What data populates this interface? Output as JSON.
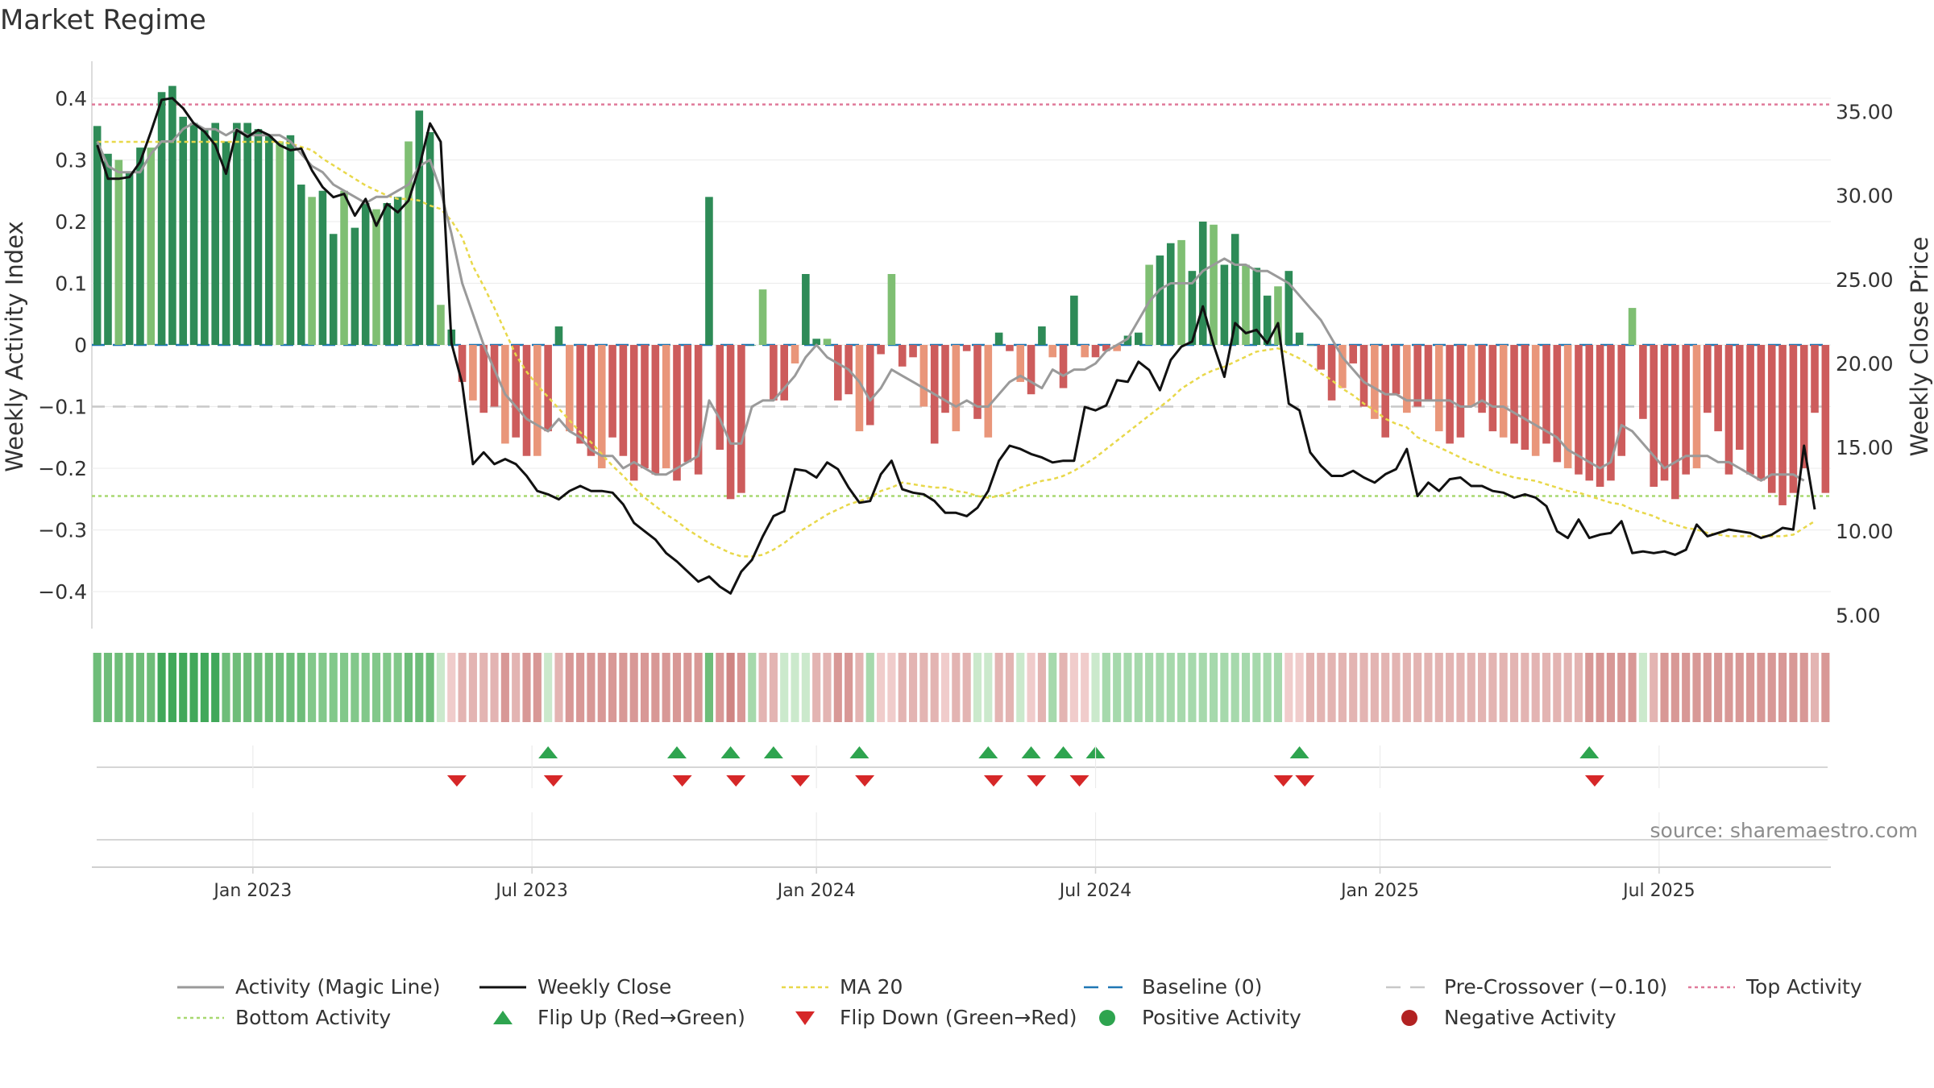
{
  "chart_data": {
    "type": "bar",
    "title": "Market Regime",
    "ylabel_left": "Weekly Activity Index",
    "ylabel_right": "Weekly Close Price",
    "source": "source: sharemaestro.com",
    "ylim_left": [
      -0.46,
      0.46
    ],
    "ylim_right": [
      4.2,
      38.0
    ],
    "left_ticks": [
      "0.4",
      "0.3",
      "0.2",
      "0.1",
      "0",
      "−0.1",
      "−0.2",
      "−0.3",
      "−0.4"
    ],
    "left_tick_values": [
      0.4,
      0.3,
      0.2,
      0.1,
      0,
      -0.1,
      -0.2,
      -0.3,
      -0.4
    ],
    "right_ticks": [
      "35.00",
      "30.00",
      "25.00",
      "20.00",
      "15.00",
      "10.00",
      "5.00"
    ],
    "right_tick_values": [
      35,
      30,
      25,
      20,
      15,
      10,
      5
    ],
    "x_ticks": [
      "Jan 2023",
      "Jul 2023",
      "Jan 2024",
      "Jul 2024",
      "Jan 2025",
      "Jul 2025"
    ],
    "x_tick_weeks": [
      15,
      41,
      67.5,
      93.5,
      120,
      146
    ],
    "reference_lines": {
      "top_activity": 0.39,
      "bottom_activity": -0.245,
      "pre_crossover": -0.1,
      "baseline": 0
    },
    "colors": {
      "pos_strong": "#2e8b57",
      "pos_light": "#7fbf73",
      "neg_strong": "#cd5c5c",
      "neg_light": "#e9967a",
      "magic_line": "#9a9a9a",
      "close": "#111111",
      "ma20": "#e8d84a",
      "baseline": "#1f77b4",
      "pre_crossover": "#c8c8c8",
      "top_activity": "#e07a9a",
      "bottom_activity": "#a8d870",
      "flip_up": "#2ea44f",
      "flip_down": "#d62728",
      "negative_dot": "#b22222"
    },
    "series": [
      {
        "name": "Weekly Activity Index",
        "values": [
          0.355,
          0.31,
          0.3,
          0.28,
          0.32,
          0.32,
          0.41,
          0.42,
          0.37,
          0.36,
          0.35,
          0.36,
          0.33,
          0.36,
          0.36,
          0.35,
          0.34,
          0.33,
          0.34,
          0.26,
          0.24,
          0.25,
          0.18,
          0.25,
          0.19,
          0.23,
          0.22,
          0.23,
          0.24,
          0.33,
          0.38,
          0.345,
          0.065,
          0.025,
          -0.06,
          -0.09,
          -0.11,
          -0.1,
          -0.16,
          -0.15,
          -0.18,
          -0.18,
          -0.14,
          0.03,
          -0.14,
          -0.16,
          -0.18,
          -0.2,
          -0.15,
          -0.18,
          -0.22,
          -0.2,
          -0.21,
          -0.2,
          -0.22,
          -0.19,
          -0.21,
          0.24,
          -0.17,
          -0.25,
          -0.24,
          0.0,
          0.09,
          -0.09,
          -0.09,
          -0.03,
          0.115,
          0.01,
          0.01,
          -0.09,
          -0.08,
          -0.14,
          -0.13,
          -0.015,
          0.115,
          -0.035,
          -0.02,
          -0.1,
          -0.16,
          -0.11,
          -0.14,
          -0.01,
          -0.12,
          -0.15,
          0.02,
          -0.01,
          -0.06,
          -0.08,
          0.03,
          -0.02,
          -0.07,
          0.08,
          -0.02,
          -0.02,
          -0.01,
          -0.01,
          0.015,
          0.02,
          0.13,
          0.145,
          0.165,
          0.17,
          0.12,
          0.2,
          0.195,
          0.13,
          0.18,
          0.13,
          0.125,
          0.08,
          0.095,
          0.12,
          0.02,
          0.0,
          -0.04,
          -0.09,
          -0.07,
          -0.03,
          -0.1,
          -0.12,
          -0.15,
          -0.08,
          -0.11,
          -0.1,
          -0.09,
          -0.14,
          -0.16,
          -0.15,
          -0.1,
          -0.11,
          -0.14,
          -0.15,
          -0.16,
          -0.17,
          -0.18,
          -0.16,
          -0.19,
          -0.2,
          -0.21,
          -0.22,
          -0.23,
          -0.22,
          -0.18,
          0.06,
          -0.12,
          -0.23,
          -0.22,
          -0.25,
          -0.21,
          -0.2,
          -0.11,
          -0.14,
          -0.21,
          -0.17,
          -0.21,
          -0.22,
          -0.24,
          -0.26,
          -0.24,
          -0.2,
          -0.11,
          -0.24
        ]
      },
      {
        "name": "Activity (Magic Line)",
        "values": [
          0.33,
          0.29,
          0.28,
          0.28,
          0.28,
          0.31,
          0.33,
          0.33,
          0.35,
          0.36,
          0.35,
          0.35,
          0.34,
          0.35,
          0.34,
          0.34,
          0.34,
          0.34,
          0.33,
          0.31,
          0.29,
          0.28,
          0.26,
          0.25,
          0.24,
          0.23,
          0.24,
          0.24,
          0.25,
          0.26,
          0.29,
          0.3,
          0.25,
          0.18,
          0.1,
          0.05,
          0.0,
          -0.04,
          -0.08,
          -0.1,
          -0.12,
          -0.13,
          -0.14,
          -0.12,
          -0.14,
          -0.15,
          -0.17,
          -0.18,
          -0.18,
          -0.2,
          -0.19,
          -0.2,
          -0.21,
          -0.21,
          -0.2,
          -0.19,
          -0.18,
          -0.09,
          -0.12,
          -0.16,
          -0.16,
          -0.1,
          -0.09,
          -0.09,
          -0.07,
          -0.05,
          -0.02,
          0.0,
          -0.02,
          -0.03,
          -0.04,
          -0.06,
          -0.09,
          -0.07,
          -0.04,
          -0.05,
          -0.06,
          -0.07,
          -0.08,
          -0.09,
          -0.1,
          -0.09,
          -0.1,
          -0.1,
          -0.08,
          -0.06,
          -0.05,
          -0.06,
          -0.07,
          -0.04,
          -0.05,
          -0.04,
          -0.04,
          -0.03,
          -0.01,
          0.0,
          0.01,
          0.04,
          0.07,
          0.09,
          0.1,
          0.1,
          0.1,
          0.12,
          0.13,
          0.14,
          0.13,
          0.13,
          0.12,
          0.12,
          0.11,
          0.1,
          0.08,
          0.06,
          0.04,
          0.01,
          -0.02,
          -0.04,
          -0.06,
          -0.07,
          -0.08,
          -0.08,
          -0.09,
          -0.09,
          -0.09,
          -0.09,
          -0.09,
          -0.1,
          -0.1,
          -0.09,
          -0.1,
          -0.1,
          -0.11,
          -0.12,
          -0.13,
          -0.14,
          -0.15,
          -0.17,
          -0.18,
          -0.19,
          -0.2,
          -0.19,
          -0.13,
          -0.14,
          -0.16,
          -0.18,
          -0.2,
          -0.19,
          -0.18,
          -0.18,
          -0.18,
          -0.19,
          -0.19,
          -0.2,
          -0.21,
          -0.22,
          -0.21,
          -0.21,
          -0.21,
          -0.22
        ]
      },
      {
        "name": "Weekly Close",
        "values": [
          33.0,
          31.0,
          31.0,
          31.1,
          32.0,
          33.8,
          35.7,
          35.8,
          35.2,
          34.3,
          33.8,
          33.0,
          31.3,
          33.9,
          33.5,
          33.9,
          33.6,
          33.0,
          32.7,
          32.8,
          31.5,
          30.5,
          29.9,
          30.1,
          28.8,
          29.8,
          28.2,
          29.5,
          29.0,
          29.7,
          31.7,
          34.3,
          33.2,
          21.2,
          18.8,
          14.0,
          14.7,
          14.0,
          14.3,
          14.0,
          13.3,
          12.4,
          12.2,
          11.9,
          12.4,
          12.7,
          12.4,
          12.4,
          12.3,
          11.6,
          10.5,
          10.0,
          9.5,
          8.7,
          8.2,
          7.6,
          7.0,
          7.3,
          6.7,
          6.3,
          7.6,
          8.3,
          9.7,
          10.9,
          11.2,
          13.7,
          13.6,
          13.2,
          14.1,
          13.7,
          12.6,
          11.7,
          11.8,
          13.4,
          14.2,
          12.5,
          12.3,
          12.2,
          11.8,
          11.1,
          11.1,
          10.9,
          11.4,
          12.4,
          14.2,
          15.1,
          14.9,
          14.6,
          14.4,
          14.1,
          14.2,
          14.2,
          17.4,
          17.2,
          17.5,
          19.0,
          18.9,
          20.1,
          19.6,
          18.4,
          20.2,
          21.0,
          21.3,
          23.4,
          21.1,
          19.2,
          22.4,
          21.8,
          22.0,
          21.2,
          22.4,
          17.6,
          17.2,
          14.7,
          13.9,
          13.3,
          13.3,
          13.6,
          13.2,
          12.9,
          13.4,
          13.7,
          14.9,
          12.1,
          12.9,
          12.4,
          13.1,
          13.2,
          12.7,
          12.7,
          12.4,
          12.3,
          12.0,
          12.2,
          12.0,
          11.5,
          10.0,
          9.6,
          10.7,
          9.6,
          9.8,
          9.9,
          10.6,
          8.7,
          8.8,
          8.7,
          8.8,
          8.6,
          8.9,
          10.4,
          9.7,
          9.9,
          10.1,
          10.0,
          9.9,
          9.6,
          9.8,
          10.2,
          10.1,
          15.1,
          11.3
        ]
      },
      {
        "name": "MA 20",
        "values": [
          33.2,
          33.2,
          33.2,
          33.2,
          33.2,
          33.2,
          33.2,
          33.2,
          33.2,
          33.2,
          33.2,
          33.2,
          33.2,
          33.2,
          33.2,
          33.2,
          33.2,
          33.2,
          33.1,
          32.9,
          32.7,
          32.2,
          31.8,
          31.4,
          31.0,
          30.6,
          30.3,
          30.0,
          29.8,
          29.8,
          29.7,
          29.4,
          29.2,
          28.5,
          27.5,
          25.8,
          24.6,
          23.3,
          21.9,
          20.5,
          19.5,
          18.7,
          18.0,
          17.3,
          16.6,
          15.9,
          15.3,
          14.6,
          13.9,
          13.3,
          12.6,
          12.0,
          11.5,
          11.0,
          10.6,
          10.1,
          9.7,
          9.3,
          9.0,
          8.7,
          8.5,
          8.5,
          8.6,
          8.9,
          9.3,
          9.8,
          10.2,
          10.6,
          11.0,
          11.3,
          11.6,
          11.8,
          12.0,
          12.4,
          12.6,
          12.9,
          12.8,
          12.7,
          12.6,
          12.6,
          12.4,
          12.3,
          12.1,
          12.0,
          12.1,
          12.3,
          12.6,
          12.8,
          13.0,
          13.1,
          13.3,
          13.6,
          14.0,
          14.4,
          14.9,
          15.4,
          15.9,
          16.4,
          16.9,
          17.4,
          17.9,
          18.5,
          18.9,
          19.3,
          19.6,
          19.8,
          20.1,
          20.4,
          20.7,
          20.8,
          20.9,
          20.6,
          20.3,
          19.9,
          19.4,
          19.0,
          18.5,
          18.1,
          17.6,
          17.2,
          16.7,
          16.4,
          16.2,
          15.6,
          15.3,
          15.0,
          14.7,
          14.4,
          14.1,
          13.9,
          13.6,
          13.4,
          13.2,
          13.1,
          13.0,
          12.8,
          12.6,
          12.4,
          12.3,
          12.1,
          11.9,
          11.7,
          11.6,
          11.3,
          11.1,
          10.9,
          10.6,
          10.4,
          10.2,
          10.1,
          9.9,
          9.8,
          9.7,
          9.7,
          9.7,
          9.7,
          9.7,
          9.7,
          9.8,
          10.2,
          10.6
        ]
      }
    ],
    "regime_strip": [
      "p3",
      "p3",
      "p3",
      "p3",
      "p3",
      "p3",
      "p4",
      "p4",
      "p4",
      "p4",
      "p4",
      "p4",
      "p3",
      "p3",
      "p3",
      "p3",
      "p3",
      "p3",
      "p3",
      "p3",
      "p2",
      "p2",
      "p2",
      "p2",
      "p2",
      "p2",
      "p2",
      "p2",
      "p2",
      "p3",
      "p3",
      "p3",
      "p0",
      "n0",
      "n1",
      "n1",
      "n1",
      "n1",
      "n2",
      "n1",
      "n2",
      "n2",
      "p0",
      "n1",
      "n2",
      "n2",
      "n2",
      "n2",
      "n2",
      "n2",
      "n2",
      "n2",
      "n2",
      "n2",
      "n2",
      "n2",
      "n2",
      "p3",
      "n2",
      "n3",
      "n2",
      "p1",
      "n1",
      "n1",
      "p0",
      "p0",
      "p0",
      "n1",
      "n1",
      "n2",
      "n2",
      "n1",
      "p1",
      "n0",
      "n0",
      "n1",
      "n1",
      "n1",
      "n1",
      "n0",
      "n1",
      "n1",
      "p0",
      "p0",
      "n1",
      "n1",
      "p0",
      "n0",
      "n1",
      "p1",
      "n1",
      "n0",
      "n0",
      "p0",
      "p1",
      "p1",
      "p1",
      "p1",
      "p1",
      "p1",
      "p1",
      "p1",
      "p1",
      "p1",
      "p1",
      "p1",
      "p1",
      "p1",
      "p1",
      "p1",
      "p1",
      "n0",
      "n0",
      "n1",
      "n1",
      "n1",
      "n1",
      "n1",
      "n1",
      "n1",
      "n1",
      "n1",
      "n1",
      "n1",
      "n1",
      "n1",
      "n1",
      "n1",
      "n1",
      "n1",
      "n1",
      "n1",
      "n1",
      "n1",
      "n1",
      "n1",
      "n1",
      "n1",
      "n1",
      "n2",
      "n2",
      "n2",
      "n2",
      "n2",
      "p0",
      "n1",
      "n2",
      "n2",
      "n2",
      "n2",
      "n2",
      "n2",
      "n2",
      "n2",
      "n2",
      "n2",
      "n2",
      "n2",
      "n2",
      "n2",
      "n1",
      "n2"
    ],
    "flip_up_weeks": [
      42.5,
      54.5,
      59.5,
      63.5,
      71.5,
      83.5,
      87.5,
      90.5,
      93.5,
      112.5,
      139.5
    ],
    "flip_down_weeks": [
      34,
      43,
      55,
      60,
      66,
      72,
      84,
      88,
      92,
      111,
      113,
      140
    ],
    "legend": [
      "Activity (Magic Line)",
      "Weekly Close",
      "MA 20",
      "Baseline (0)",
      "Pre-Crossover (−0.10)",
      "Top Activity",
      "Bottom Activity",
      "Flip Up (Red→Green)",
      "Flip Down (Green→Red)",
      "Positive Activity",
      "Negative Activity"
    ]
  }
}
